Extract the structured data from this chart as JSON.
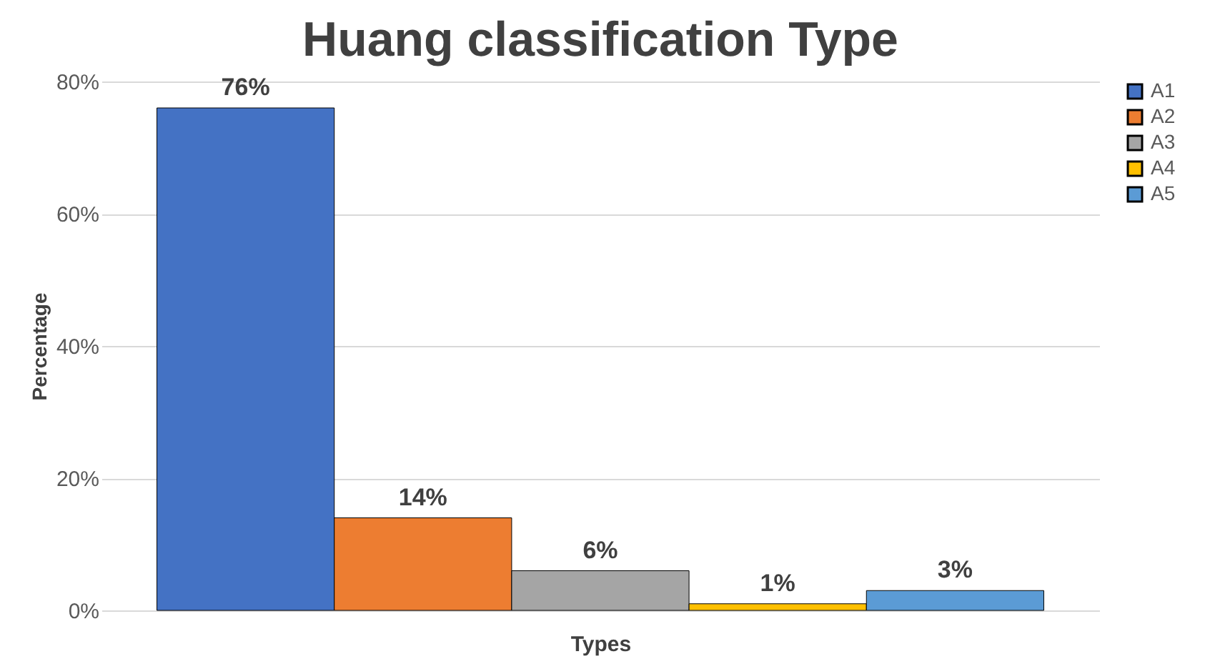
{
  "chart_data": {
    "type": "bar",
    "title": "Huang classification Type",
    "xlabel": "Types",
    "ylabel": "Percentage",
    "categories": [
      null
    ],
    "series": [
      {
        "name": "A1",
        "color": "#4472c4",
        "values": [
          76
        ],
        "value_labels": [
          "76%"
        ]
      },
      {
        "name": "A2",
        "color": "#ed7d31",
        "values": [
          14
        ],
        "value_labels": [
          "14%"
        ]
      },
      {
        "name": "A3",
        "color": "#a5a5a5",
        "values": [
          6
        ],
        "value_labels": [
          "6%"
        ]
      },
      {
        "name": "A4",
        "color": "#ffc000",
        "values": [
          1
        ],
        "value_labels": [
          "1%"
        ]
      },
      {
        "name": "A5",
        "color": "#5b9bd5",
        "values": [
          3
        ],
        "value_labels": [
          "3%"
        ]
      }
    ],
    "ylim": [
      0,
      80
    ],
    "yticks": [
      {
        "value": 0,
        "label": "0%"
      },
      {
        "value": 20,
        "label": "20%"
      },
      {
        "value": 40,
        "label": "40%"
      },
      {
        "value": 60,
        "label": "60%"
      },
      {
        "value": 80,
        "label": "80%"
      }
    ],
    "grid": "y",
    "legend": "right"
  }
}
